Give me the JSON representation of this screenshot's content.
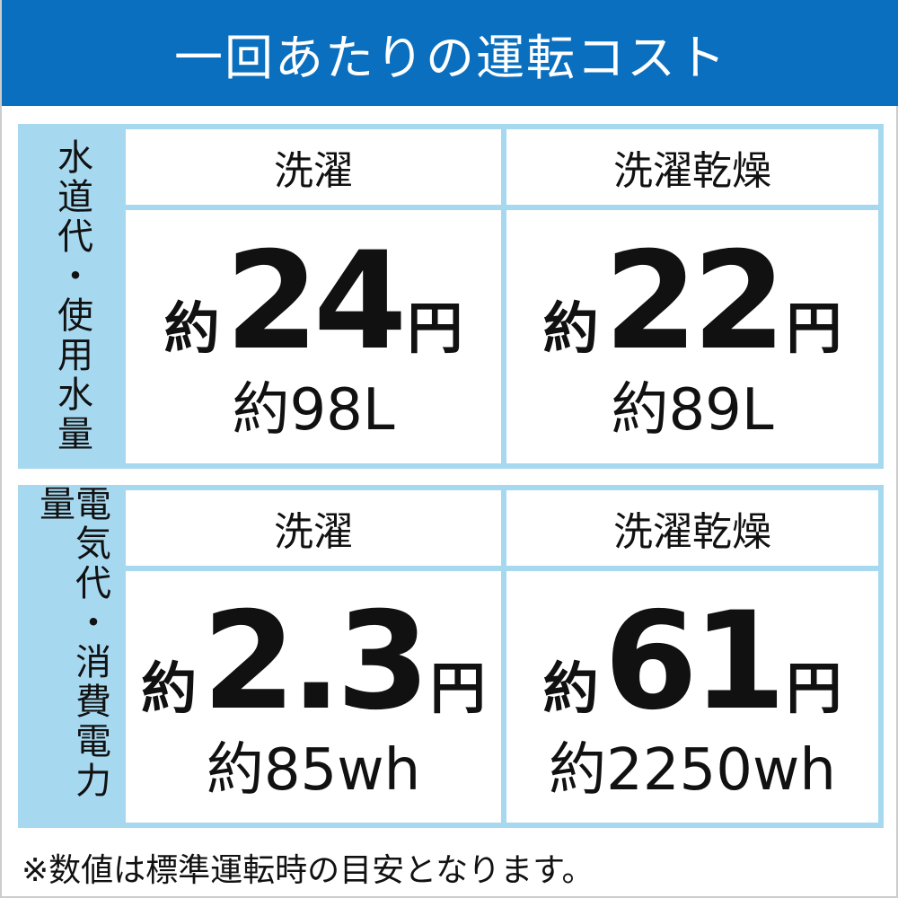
{
  "title": "一回あたりの運転コスト",
  "sections": [
    {
      "label": "水道代・使用水量",
      "columns": [
        {
          "header": "洗濯",
          "prefix": "約",
          "value": "24",
          "unit": "円",
          "sub": "約98L"
        },
        {
          "header": "洗濯乾燥",
          "prefix": "約",
          "value": "22",
          "unit": "円",
          "sub": "約89L"
        }
      ]
    },
    {
      "label": "電気代・消費電力量",
      "columns": [
        {
          "header": "洗濯",
          "prefix": "約",
          "value": "2.3",
          "unit": "円",
          "sub": "約85wh"
        },
        {
          "header": "洗濯乾燥",
          "prefix": "約",
          "value": "61",
          "unit": "円",
          "sub": "約2250wh"
        }
      ]
    }
  ],
  "footnote": "※数値は標準運転時の目安となります。",
  "colors": {
    "header": "#0a6fbf",
    "table": "#a6d8f0"
  }
}
